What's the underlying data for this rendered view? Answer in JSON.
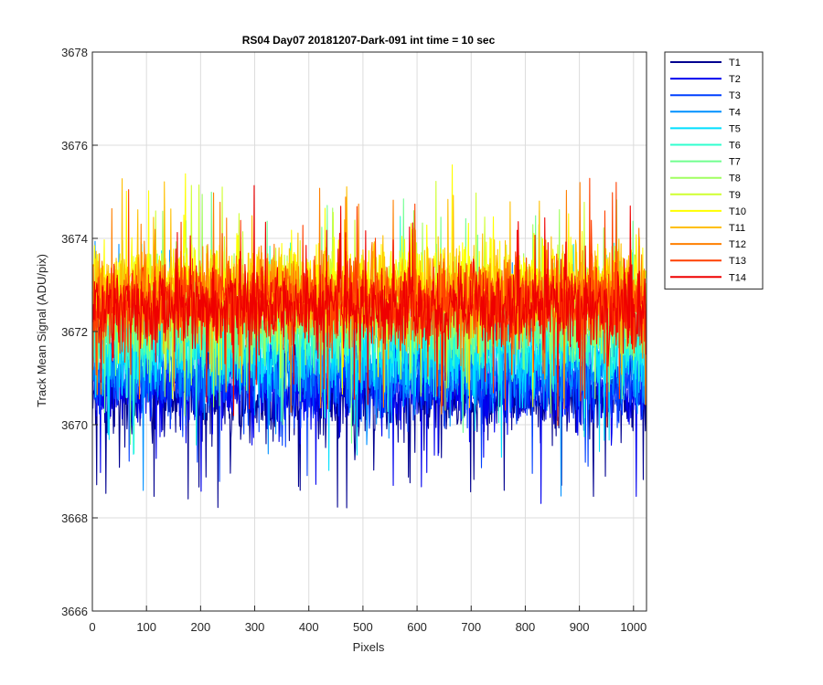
{
  "chart_data": {
    "type": "line",
    "title": "RS04 Day07 20181207-Dark-091 int time = 10 sec",
    "xlabel": "Pixels",
    "ylabel": "Track Mean Signal (ADU/pix)",
    "xlim": [
      0,
      1024
    ],
    "ylim": [
      3666,
      3678
    ],
    "xticks": [
      0,
      100,
      200,
      300,
      400,
      500,
      600,
      700,
      800,
      900,
      1000
    ],
    "yticks": [
      3666,
      3668,
      3670,
      3672,
      3674,
      3676,
      3678
    ],
    "grid": true,
    "legend_position": "outside-top-right",
    "series": [
      {
        "name": "T1",
        "color": "#00008F",
        "mean": 3670.6,
        "spread": 0.8
      },
      {
        "name": "T2",
        "color": "#0000EF",
        "mean": 3670.8,
        "spread": 0.8
      },
      {
        "name": "T3",
        "color": "#0040FF",
        "mean": 3671.0,
        "spread": 0.8
      },
      {
        "name": "T4",
        "color": "#0090FF",
        "mean": 3671.3,
        "spread": 0.8
      },
      {
        "name": "T5",
        "color": "#00DFFF",
        "mean": 3671.6,
        "spread": 0.8
      },
      {
        "name": "T6",
        "color": "#30FFCF",
        "mean": 3671.9,
        "spread": 0.8
      },
      {
        "name": "T7",
        "color": "#70FF8F",
        "mean": 3672.2,
        "spread": 0.8
      },
      {
        "name": "T8",
        "color": "#A0FF60",
        "mean": 3672.5,
        "spread": 0.8
      },
      {
        "name": "T9",
        "color": "#CFFF30",
        "mean": 3672.8,
        "spread": 0.8
      },
      {
        "name": "T10",
        "color": "#FFFF00",
        "mean": 3673.0,
        "spread": 0.8
      },
      {
        "name": "T11",
        "color": "#FFBF00",
        "mean": 3672.9,
        "spread": 0.8
      },
      {
        "name": "T12",
        "color": "#FF7F00",
        "mean": 3672.7,
        "spread": 0.8
      },
      {
        "name": "T13",
        "color": "#FF4000",
        "mean": 3672.6,
        "spread": 0.8
      },
      {
        "name": "T14",
        "color": "#EF0000",
        "mean": 3672.5,
        "spread": 0.8
      }
    ]
  }
}
